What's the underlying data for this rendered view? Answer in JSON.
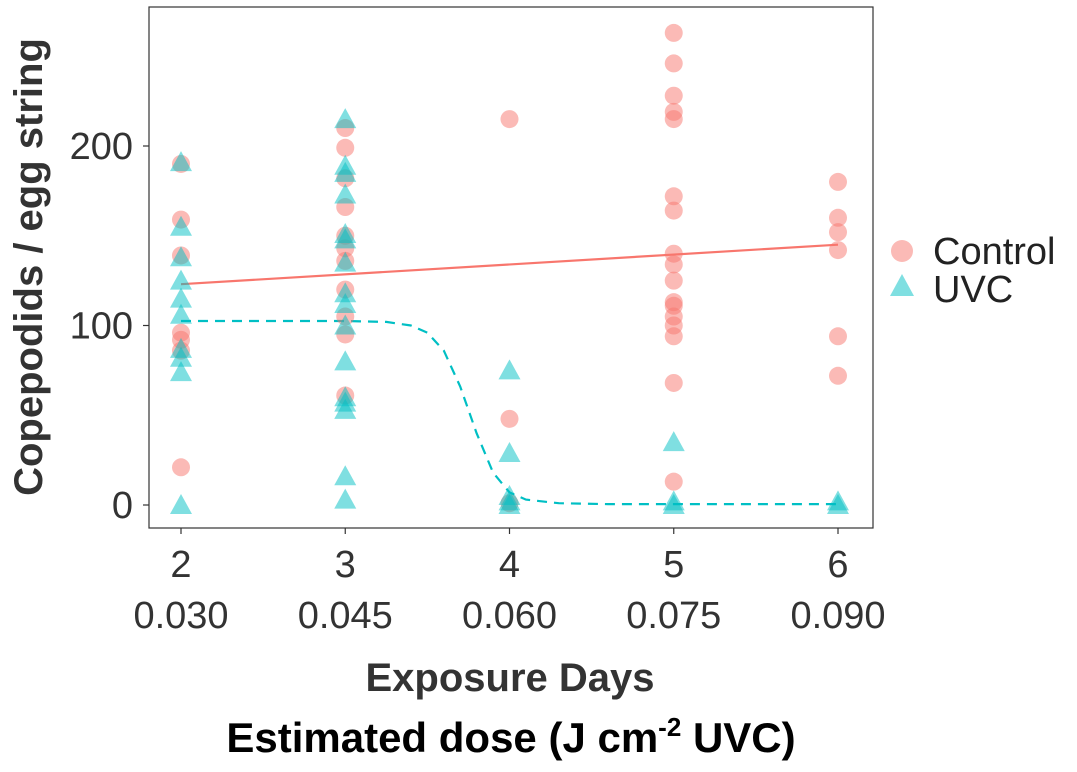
{
  "chart_data": {
    "type": "scatter",
    "title": "",
    "ylabel": "Copepodids / egg string",
    "xlabel": "Exposure Days",
    "xlabel2_main": "Estimated dose (J cm",
    "xlabel2_sup": "-2",
    "xlabel2_end": " UVC)",
    "x_ticks": [
      "2",
      "3",
      "4",
      "5",
      "6"
    ],
    "x_ticks2": [
      "0.030",
      "0.045",
      "0.060",
      "0.075",
      "0.090"
    ],
    "y_ticks": [
      "0",
      "100",
      "200"
    ],
    "ylim": [
      -12,
      278
    ],
    "xlim": [
      1.8,
      6.2
    ],
    "grid": false,
    "legend_position": "right",
    "series": [
      {
        "name": "Control",
        "marker": "circle",
        "color": "#F8766D",
        "points": [
          [
            2,
            190
          ],
          [
            2,
            159
          ],
          [
            2,
            139
          ],
          [
            2,
            96
          ],
          [
            2,
            92
          ],
          [
            2,
            86
          ],
          [
            2,
            21
          ],
          [
            3,
            210
          ],
          [
            3,
            199
          ],
          [
            3,
            182
          ],
          [
            3,
            166
          ],
          [
            3,
            150
          ],
          [
            3,
            143
          ],
          [
            3,
            136
          ],
          [
            3,
            120
          ],
          [
            3,
            105
          ],
          [
            3,
            95
          ],
          [
            3,
            61
          ],
          [
            4,
            215
          ],
          [
            4,
            48
          ],
          [
            4,
            1
          ],
          [
            5,
            263
          ],
          [
            5,
            246
          ],
          [
            5,
            228
          ],
          [
            5,
            219
          ],
          [
            5,
            215
          ],
          [
            5,
            172
          ],
          [
            5,
            164
          ],
          [
            5,
            140
          ],
          [
            5,
            134
          ],
          [
            5,
            125
          ],
          [
            5,
            113
          ],
          [
            5,
            111
          ],
          [
            5,
            105
          ],
          [
            5,
            100
          ],
          [
            5,
            94
          ],
          [
            5,
            68
          ],
          [
            5,
            13
          ],
          [
            6,
            180
          ],
          [
            6,
            160
          ],
          [
            6,
            152
          ],
          [
            6,
            142
          ],
          [
            6,
            94
          ],
          [
            6,
            72
          ]
        ]
      },
      {
        "name": "UVC",
        "marker": "triangle",
        "color": "#00BFC4",
        "points": [
          [
            2,
            191
          ],
          [
            2,
            155
          ],
          [
            2,
            138
          ],
          [
            2,
            125
          ],
          [
            2,
            115
          ],
          [
            2,
            106
          ],
          [
            2,
            87
          ],
          [
            2,
            82
          ],
          [
            2,
            74
          ],
          [
            2,
            0
          ],
          [
            3,
            215
          ],
          [
            3,
            189
          ],
          [
            3,
            185
          ],
          [
            3,
            173
          ],
          [
            3,
            151
          ],
          [
            3,
            148
          ],
          [
            3,
            135
          ],
          [
            3,
            118
          ],
          [
            3,
            112
          ],
          [
            3,
            100
          ],
          [
            3,
            80
          ],
          [
            3,
            60
          ],
          [
            3,
            57
          ],
          [
            3,
            53
          ],
          [
            3,
            16
          ],
          [
            3,
            3
          ],
          [
            4,
            75
          ],
          [
            4,
            29
          ],
          [
            4,
            5
          ],
          [
            4,
            2
          ],
          [
            4,
            0
          ],
          [
            5,
            35
          ],
          [
            5,
            2
          ],
          [
            5,
            0
          ],
          [
            6,
            2
          ],
          [
            6,
            0
          ]
        ]
      }
    ],
    "fits": [
      {
        "series": "Control",
        "style": "solid",
        "points": [
          [
            2,
            123
          ],
          [
            6,
            145
          ]
        ]
      },
      {
        "series": "UVC",
        "style": "dashed",
        "points": [
          [
            2,
            102.5
          ],
          [
            3,
            102.5
          ],
          [
            3.25,
            102
          ],
          [
            3.4,
            100
          ],
          [
            3.5,
            96
          ],
          [
            3.6,
            86
          ],
          [
            3.7,
            66
          ],
          [
            3.8,
            40
          ],
          [
            3.9,
            18
          ],
          [
            4,
            7
          ],
          [
            4.1,
            3
          ],
          [
            4.3,
            1
          ],
          [
            4.6,
            0.5
          ],
          [
            5,
            0.5
          ],
          [
            6,
            0.5
          ]
        ]
      }
    ]
  }
}
